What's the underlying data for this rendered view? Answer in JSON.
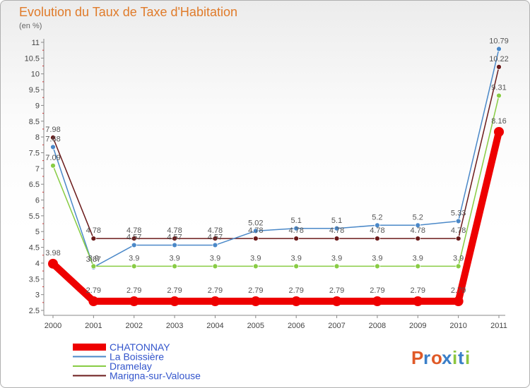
{
  "chart_data": {
    "type": "line",
    "title": "Evolution du Taux de Taxe d'Habitation",
    "subtitle": "(en %)",
    "xlabel": "",
    "ylabel": "",
    "ylim": [
      2.5,
      11
    ],
    "yticks": [
      2.5,
      3,
      3.5,
      4,
      4.5,
      5,
      5.5,
      6,
      6.5,
      7,
      7.5,
      8,
      8.5,
      9,
      9.5,
      10,
      10.5,
      11
    ],
    "ytick_labels": [
      "2.5",
      "3",
      "3.5",
      "4",
      "4.5",
      "5",
      "5.5",
      "6",
      "6.5",
      "7",
      "7.5",
      "8",
      "8.5",
      "9",
      "9.5",
      "10",
      "10.5",
      "11"
    ],
    "categories": [
      "2000",
      "2001",
      "2002",
      "2003",
      "2004",
      "2005",
      "2006",
      "2007",
      "2008",
      "2009",
      "2010",
      "2011"
    ],
    "series": [
      {
        "name": "Marigna-sur-Valouse",
        "color": "#6b1a1a",
        "values": [
          7.98,
          4.78,
          4.78,
          4.78,
          4.78,
          4.78,
          4.78,
          4.78,
          4.78,
          4.78,
          4.78,
          10.22
        ],
        "labels": [
          "7.98",
          "4.78",
          "4.78",
          "4.78",
          "4.78",
          "4.78",
          "4.78",
          "4.78",
          "4.78",
          "4.78",
          "4.78",
          "10.22"
        ]
      },
      {
        "name": "La Boissière",
        "color": "#4a88c8",
        "values": [
          7.68,
          3.87,
          4.57,
          4.57,
          4.57,
          5.02,
          5.1,
          5.1,
          5.2,
          5.2,
          5.33,
          10.79
        ],
        "labels": [
          "7.68",
          "3.87",
          "4.57",
          "4.57",
          "4.57",
          "5.02",
          "5.1",
          "5.1",
          "5.2",
          "5.2",
          "5.33",
          "10.79"
        ]
      },
      {
        "name": "Dramelay",
        "color": "#88cc44",
        "values": [
          7.09,
          3.9,
          3.9,
          3.9,
          3.9,
          3.9,
          3.9,
          3.9,
          3.9,
          3.9,
          3.9,
          9.31
        ],
        "labels": [
          "7.09",
          "3.9",
          "3.9",
          "3.9",
          "3.9",
          "3.9",
          "3.9",
          "3.9",
          "3.9",
          "3.9",
          "3.9",
          "9.31"
        ]
      },
      {
        "name": "CHATONNAY",
        "color": "#ee0000",
        "values": [
          3.98,
          2.79,
          2.79,
          2.79,
          2.79,
          2.79,
          2.79,
          2.79,
          2.79,
          2.79,
          2.79,
          8.16
        ],
        "labels": [
          "3.98",
          "2.79",
          "2.79",
          "2.79",
          "2.79",
          "2.79",
          "2.79",
          "2.79",
          "2.79",
          "2.79",
          "2.79",
          "8.16"
        ]
      }
    ],
    "legend": [
      "CHATONNAY",
      "La Boissière",
      "Dramelay",
      "Marigna-sur-Valouse"
    ],
    "legend_position": "bottom-left"
  },
  "brand": {
    "name": "Proxiti",
    "letters": [
      "P",
      "r",
      "o",
      "x",
      "i",
      "t",
      "i"
    ],
    "colors": [
      "#e05a28",
      "#3a7fc8",
      "#e05a28",
      "#3a7fc8",
      "#8cc63f",
      "#3a7fc8",
      "#8cc63f"
    ]
  }
}
